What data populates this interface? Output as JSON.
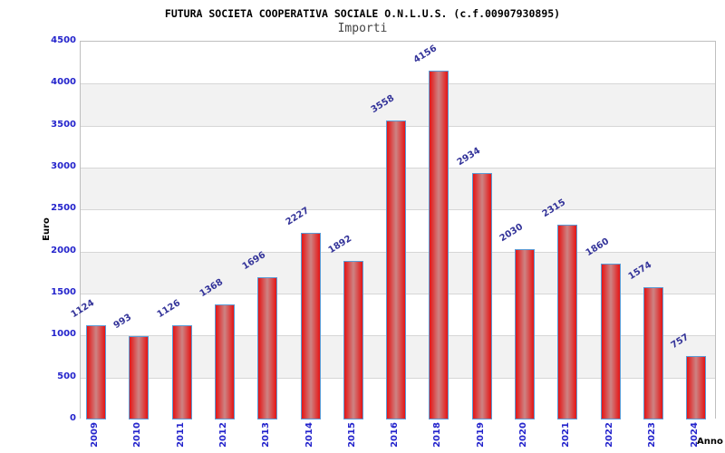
{
  "chart_data": {
    "type": "bar",
    "title": "FUTURA SOCIETA COOPERATIVA SOCIALE O.N.L.U.S. (c.f.00907930895)",
    "subtitle": "Importi",
    "xlabel": "Anno",
    "ylabel": "Euro",
    "categories": [
      "2009",
      "2010",
      "2011",
      "2012",
      "2013",
      "2014",
      "2015",
      "2016",
      "2018",
      "2019",
      "2020",
      "2021",
      "2022",
      "2023",
      "2024"
    ],
    "values": [
      1124,
      993,
      1126,
      1368,
      1696,
      2227,
      1892,
      3558,
      4156,
      2934,
      2030,
      2315,
      1860,
      1574,
      757
    ],
    "ylim": [
      0,
      4500
    ],
    "ytick_step": 500,
    "legend_position": "none",
    "grid": "horizontal-bands-alternating",
    "colors": {
      "bar_edge_fill": "#e51414",
      "bar_center_fill": "#cd8484",
      "bar_border": "#5b9bd5",
      "axis_tick_label": "#2424cc",
      "value_label": "#333399",
      "band_gray": "#f2f2f2",
      "gridline": "#d6d6d6",
      "plot_border": "#bfbfbf",
      "title_color": "#000000",
      "subtitle_color": "#444444"
    }
  }
}
